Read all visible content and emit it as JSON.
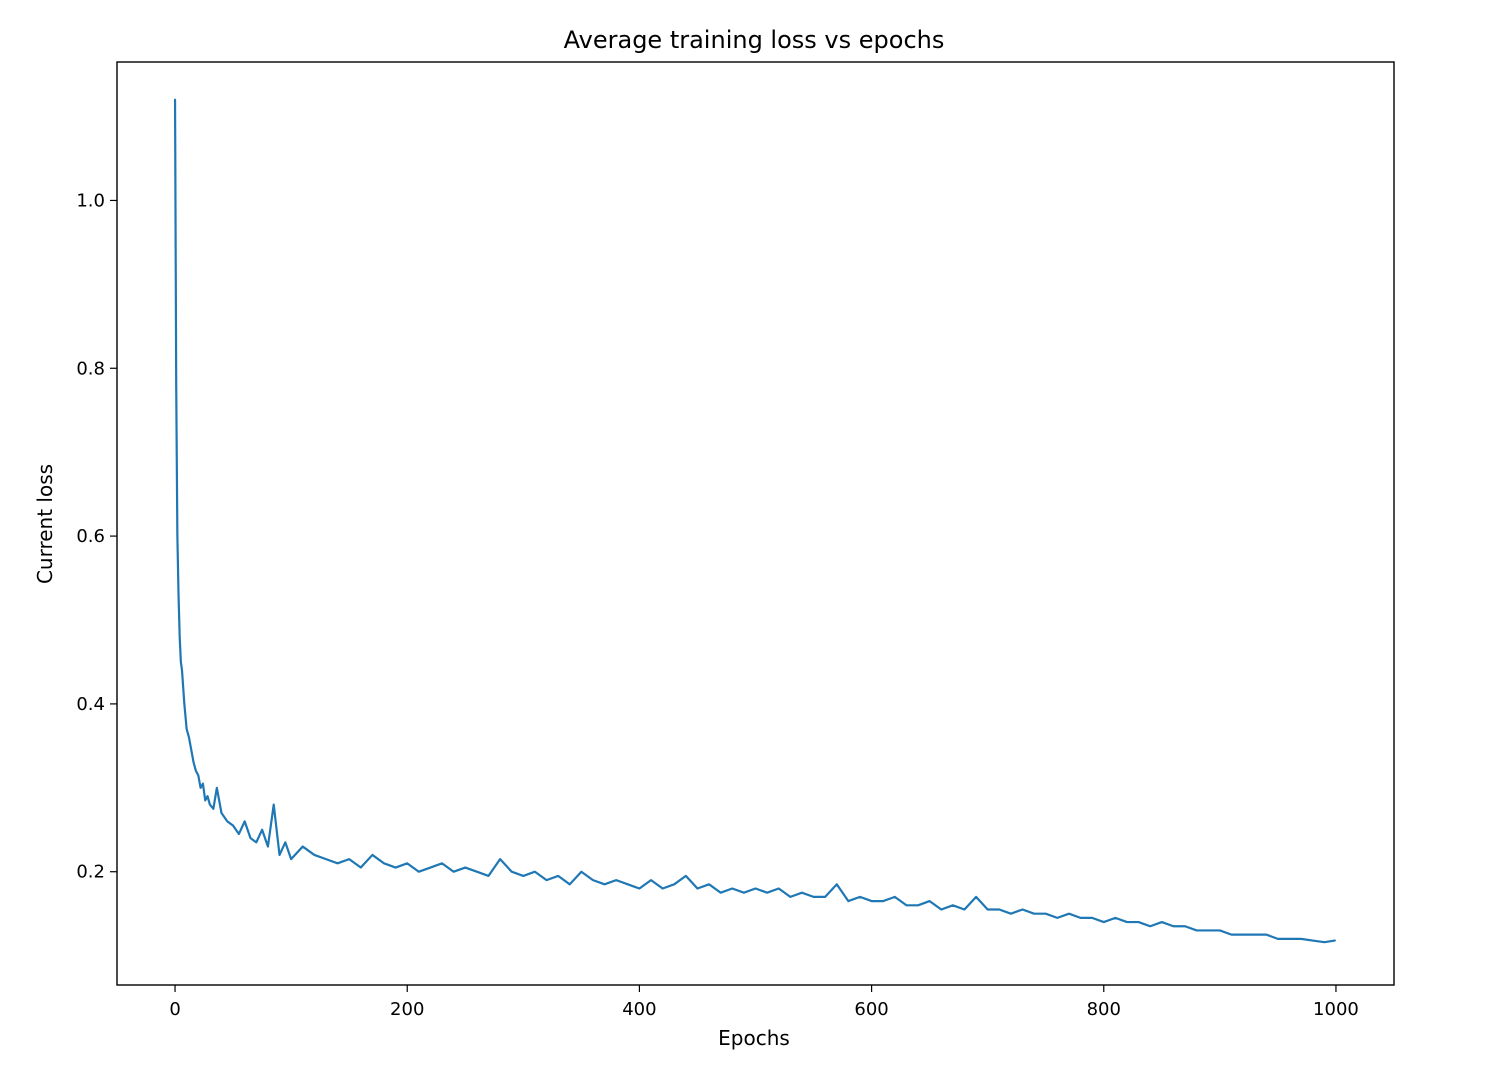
{
  "colors": {
    "background": "#ffffff",
    "axes": "#000000",
    "series_line": "#1f77b4"
  },
  "chart_data": {
    "type": "line",
    "title": "Average training loss vs epochs",
    "xlabel": "Epochs",
    "ylabel": "Current loss",
    "xlim": [
      -50,
      1050
    ],
    "ylim": [
      0.065,
      1.165
    ],
    "xticks": [
      0,
      200,
      400,
      600,
      800,
      1000
    ],
    "xtick_labels": [
      "0",
      "200",
      "400",
      "600",
      "800",
      "1000"
    ],
    "yticks": [
      0.2,
      0.4,
      0.6,
      0.8,
      1.0
    ],
    "ytick_labels": [
      "0.2",
      "0.4",
      "0.6",
      "0.8",
      "1.0"
    ],
    "grid": false,
    "legend": "none",
    "series": [
      {
        "color": "#1f77b4",
        "x": [
          0,
          1,
          2,
          3,
          4,
          5,
          6,
          7,
          8,
          10,
          12,
          14,
          16,
          18,
          20,
          22,
          24,
          26,
          28,
          30,
          33,
          36,
          40,
          45,
          50,
          55,
          60,
          65,
          70,
          75,
          80,
          85,
          90,
          95,
          100,
          110,
          120,
          130,
          140,
          150,
          160,
          170,
          180,
          190,
          200,
          210,
          220,
          230,
          240,
          250,
          260,
          270,
          280,
          290,
          300,
          310,
          320,
          330,
          340,
          350,
          360,
          370,
          380,
          390,
          400,
          410,
          420,
          430,
          440,
          450,
          460,
          470,
          480,
          490,
          500,
          510,
          520,
          530,
          540,
          550,
          560,
          570,
          580,
          590,
          600,
          610,
          620,
          630,
          640,
          650,
          660,
          670,
          680,
          690,
          700,
          710,
          720,
          730,
          740,
          750,
          760,
          770,
          780,
          790,
          800,
          810,
          820,
          830,
          840,
          850,
          860,
          870,
          880,
          890,
          900,
          910,
          920,
          930,
          940,
          950,
          960,
          970,
          980,
          990,
          999
        ],
        "y": [
          1.12,
          0.78,
          0.6,
          0.53,
          0.48,
          0.45,
          0.44,
          0.42,
          0.4,
          0.37,
          0.36,
          0.345,
          0.33,
          0.32,
          0.315,
          0.3,
          0.305,
          0.285,
          0.29,
          0.28,
          0.275,
          0.3,
          0.27,
          0.26,
          0.255,
          0.245,
          0.26,
          0.24,
          0.235,
          0.25,
          0.23,
          0.28,
          0.22,
          0.235,
          0.215,
          0.23,
          0.22,
          0.215,
          0.21,
          0.215,
          0.205,
          0.22,
          0.21,
          0.205,
          0.21,
          0.2,
          0.205,
          0.21,
          0.2,
          0.205,
          0.2,
          0.195,
          0.215,
          0.2,
          0.195,
          0.2,
          0.19,
          0.195,
          0.185,
          0.2,
          0.19,
          0.185,
          0.19,
          0.185,
          0.18,
          0.19,
          0.18,
          0.185,
          0.195,
          0.18,
          0.185,
          0.175,
          0.18,
          0.175,
          0.18,
          0.175,
          0.18,
          0.17,
          0.175,
          0.17,
          0.17,
          0.185,
          0.165,
          0.17,
          0.165,
          0.165,
          0.17,
          0.16,
          0.16,
          0.165,
          0.155,
          0.16,
          0.155,
          0.17,
          0.155,
          0.155,
          0.15,
          0.155,
          0.15,
          0.15,
          0.145,
          0.15,
          0.145,
          0.145,
          0.14,
          0.145,
          0.14,
          0.14,
          0.135,
          0.14,
          0.135,
          0.135,
          0.13,
          0.13,
          0.13,
          0.125,
          0.125,
          0.125,
          0.125,
          0.12,
          0.12,
          0.12,
          0.118,
          0.116,
          0.118
        ]
      }
    ]
  }
}
